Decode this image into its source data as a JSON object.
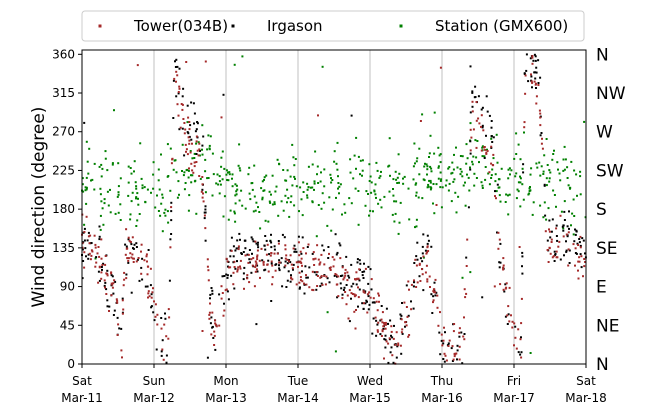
{
  "chart_data": {
    "type": "scatter",
    "ylabel": "Wind direction (degree)",
    "ylim": [
      0,
      365
    ],
    "yticks": [
      0,
      45,
      90,
      135,
      180,
      225,
      270,
      315,
      360
    ],
    "right_labels": [
      {
        "value": 0,
        "label": "N"
      },
      {
        "value": 45,
        "label": "NE"
      },
      {
        "value": 90,
        "label": "E"
      },
      {
        "value": 135,
        "label": "SE"
      },
      {
        "value": 180,
        "label": "S"
      },
      {
        "value": 225,
        "label": "SW"
      },
      {
        "value": 270,
        "label": "W"
      },
      {
        "value": 315,
        "label": "NW"
      },
      {
        "value": 360,
        "label": "N"
      }
    ],
    "xlim": [
      "2016-03-11",
      "2016-03-18"
    ],
    "xticks": [
      {
        "day": "Sat",
        "date": "Mar-11"
      },
      {
        "day": "Sun",
        "date": "Mar-12"
      },
      {
        "day": "Mon",
        "date": "Mar-13"
      },
      {
        "day": "Tue",
        "date": "Mar-14"
      },
      {
        "day": "Wed",
        "date": "Mar-15"
      },
      {
        "day": "Thu",
        "date": "Mar-16"
      },
      {
        "day": "Fri",
        "date": "Mar-17"
      },
      {
        "day": "Sat",
        "date": "Mar-18"
      }
    ],
    "grid": "x",
    "legend_position": "top",
    "watermark": "",
    "series": [
      {
        "name": "Tower(034B)",
        "color": "#a52a2a",
        "profile": [
          [
            0.0,
            140
          ],
          [
            0.1,
            150
          ],
          [
            0.2,
            125
          ],
          [
            0.3,
            100
          ],
          [
            0.4,
            90
          ],
          [
            0.5,
            60
          ],
          [
            0.55,
            20
          ],
          [
            0.6,
            130
          ],
          [
            0.7,
            140
          ],
          [
            0.8,
            135
          ],
          [
            0.9,
            110
          ],
          [
            1.0,
            60
          ],
          [
            1.1,
            40
          ],
          [
            1.2,
            20
          ],
          [
            1.28,
            350
          ],
          [
            1.35,
            300
          ],
          [
            1.45,
            260
          ],
          [
            1.55,
            240
          ],
          [
            1.65,
            230
          ],
          [
            1.72,
            150
          ],
          [
            1.78,
            60
          ],
          [
            1.85,
            30
          ],
          [
            1.9,
            60
          ],
          [
            2.0,
            90
          ],
          [
            2.1,
            110
          ],
          [
            2.3,
            115
          ],
          [
            2.5,
            120
          ],
          [
            2.7,
            120
          ],
          [
            2.9,
            115
          ],
          [
            3.1,
            110
          ],
          [
            3.3,
            105
          ],
          [
            3.5,
            110
          ],
          [
            3.65,
            100
          ],
          [
            3.75,
            70
          ],
          [
            3.85,
            100
          ],
          [
            3.95,
            90
          ],
          [
            4.1,
            60
          ],
          [
            4.2,
            40
          ],
          [
            4.3,
            30
          ],
          [
            4.4,
            40
          ],
          [
            4.5,
            50
          ],
          [
            4.65,
            110
          ],
          [
            4.8,
            120
          ],
          [
            4.95,
            60
          ],
          [
            5.0,
            30
          ],
          [
            5.1,
            20
          ],
          [
            5.2,
            15
          ],
          [
            5.3,
            30
          ],
          [
            5.42,
            300
          ],
          [
            5.5,
            280
          ],
          [
            5.6,
            250
          ],
          [
            5.7,
            240
          ],
          [
            5.8,
            130
          ],
          [
            5.9,
            80
          ],
          [
            6.0,
            40
          ],
          [
            6.1,
            20
          ],
          [
            6.15,
            330
          ],
          [
            6.25,
            340
          ],
          [
            6.35,
            320
          ],
          [
            6.45,
            150
          ],
          [
            6.55,
            130
          ],
          [
            6.7,
            140
          ],
          [
            6.85,
            130
          ],
          [
            7.0,
            120
          ]
        ]
      },
      {
        "name": "Irgason",
        "color": "#000000",
        "profile": [
          [
            0.0,
            130
          ],
          [
            0.1,
            145
          ],
          [
            0.2,
            130
          ],
          [
            0.3,
            110
          ],
          [
            0.4,
            80
          ],
          [
            0.5,
            50
          ],
          [
            0.55,
            25
          ],
          [
            0.6,
            125
          ],
          [
            0.7,
            130
          ],
          [
            0.8,
            120
          ],
          [
            0.9,
            100
          ],
          [
            1.0,
            50
          ],
          [
            1.1,
            30
          ],
          [
            1.2,
            15
          ],
          [
            1.28,
            355
          ],
          [
            1.35,
            320
          ],
          [
            1.45,
            290
          ],
          [
            1.55,
            270
          ],
          [
            1.65,
            250
          ],
          [
            1.72,
            170
          ],
          [
            1.78,
            70
          ],
          [
            1.85,
            25
          ],
          [
            1.9,
            70
          ],
          [
            2.0,
            110
          ],
          [
            2.1,
            125
          ],
          [
            2.3,
            125
          ],
          [
            2.5,
            128
          ],
          [
            2.7,
            125
          ],
          [
            2.9,
            122
          ],
          [
            3.1,
            120
          ],
          [
            3.3,
            115
          ],
          [
            3.5,
            120
          ],
          [
            3.65,
            95
          ],
          [
            3.75,
            80
          ],
          [
            3.85,
            110
          ],
          [
            3.95,
            80
          ],
          [
            4.1,
            55
          ],
          [
            4.2,
            35
          ],
          [
            4.3,
            25
          ],
          [
            4.4,
            45
          ],
          [
            4.5,
            55
          ],
          [
            4.65,
            120
          ],
          [
            4.8,
            130
          ],
          [
            4.95,
            55
          ],
          [
            5.0,
            25
          ],
          [
            5.1,
            15
          ],
          [
            5.2,
            10
          ],
          [
            5.3,
            25
          ],
          [
            5.42,
            320
          ],
          [
            5.5,
            300
          ],
          [
            5.6,
            270
          ],
          [
            5.7,
            260
          ],
          [
            5.8,
            140
          ],
          [
            5.9,
            70
          ],
          [
            6.0,
            30
          ],
          [
            6.1,
            15
          ],
          [
            6.15,
            340
          ],
          [
            6.25,
            350
          ],
          [
            6.35,
            330
          ],
          [
            6.45,
            160
          ],
          [
            6.55,
            140
          ],
          [
            6.7,
            150
          ],
          [
            6.85,
            140
          ],
          [
            7.0,
            130
          ]
        ]
      },
      {
        "name": "Station (GMX600)",
        "color": "#008000",
        "profile": [
          [
            0.0,
            205
          ],
          [
            0.5,
            210
          ],
          [
            1.0,
            195
          ],
          [
            1.2,
            200
          ],
          [
            1.5,
            235
          ],
          [
            1.8,
            225
          ],
          [
            2.0,
            210
          ],
          [
            2.5,
            200
          ],
          [
            3.0,
            200
          ],
          [
            3.5,
            210
          ],
          [
            4.0,
            205
          ],
          [
            4.5,
            200
          ],
          [
            5.0,
            220
          ],
          [
            5.5,
            230
          ],
          [
            6.0,
            215
          ],
          [
            6.5,
            210
          ],
          [
            7.0,
            200
          ]
        ]
      }
    ]
  }
}
